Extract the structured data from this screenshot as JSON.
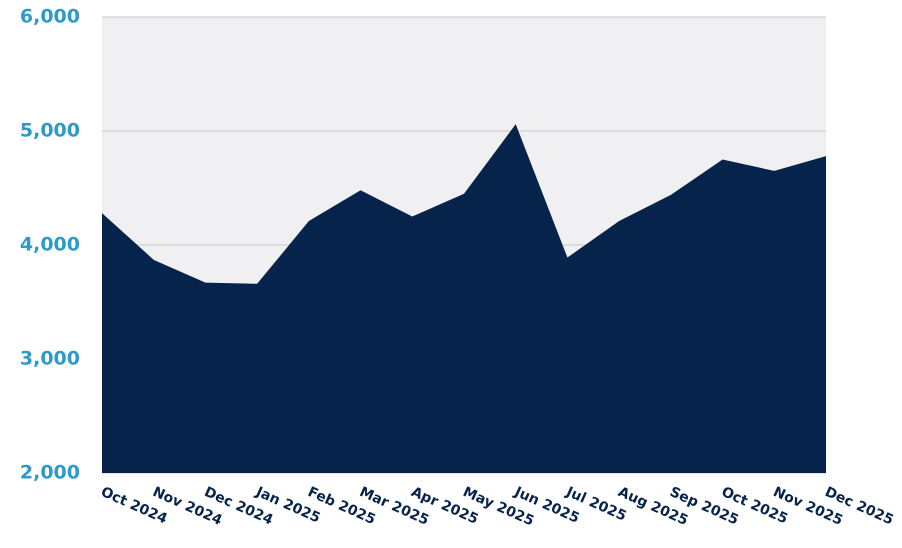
{
  "chart_data": {
    "type": "area",
    "categories": [
      "Oct 2024",
      "Nov 2024",
      "Dec 2024",
      "Jan 2025",
      "Feb 2025",
      "Mar 2025",
      "Apr 2025",
      "May 2025",
      "Jun 2025",
      "Jul 2025",
      "Aug 2025",
      "Sep 2025",
      "Oct 2025",
      "Nov 2025",
      "Dec 2025"
    ],
    "values": [
      4280,
      3870,
      3670,
      3660,
      4210,
      4480,
      4250,
      4450,
      5060,
      3890,
      4210,
      4440,
      4750,
      4650,
      4780
    ],
    "color": "#06244b",
    "ylim": [
      2000,
      6000
    ],
    "yticks": [
      {
        "value": 2000,
        "label": "2,000"
      },
      {
        "value": 3000,
        "label": "3,000"
      },
      {
        "value": 4000,
        "label": "4,000"
      },
      {
        "value": 5000,
        "label": "5,000"
      },
      {
        "value": 6000,
        "label": "6,000"
      }
    ],
    "grid": true
  }
}
